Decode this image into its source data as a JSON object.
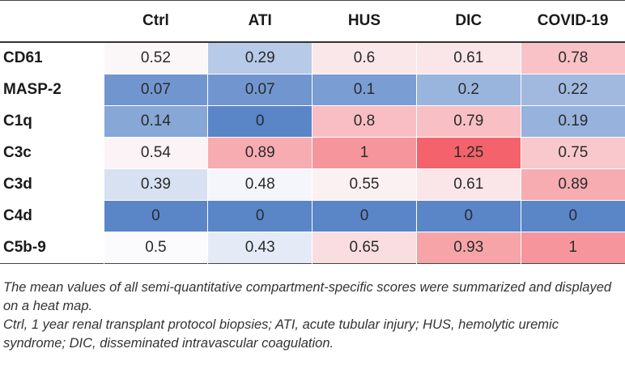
{
  "chart_data": {
    "type": "heatmap",
    "title": "",
    "columns": [
      "Ctrl",
      "ATI",
      "HUS",
      "DIC",
      "COVID-19"
    ],
    "rows": [
      "CD61",
      "MASP-2",
      "C1q",
      "C3c",
      "C3d",
      "C4d",
      "C5b-9"
    ],
    "values": [
      [
        0.52,
        0.29,
        0.6,
        0.61,
        0.78
      ],
      [
        0.07,
        0.07,
        0.1,
        0.2,
        0.22
      ],
      [
        0.14,
        0,
        0.8,
        0.79,
        0.19
      ],
      [
        0.54,
        0.89,
        1,
        1.25,
        0.75
      ],
      [
        0.39,
        0.48,
        0.55,
        0.61,
        0.89
      ],
      [
        0,
        0,
        0,
        0,
        0
      ],
      [
        0.5,
        0.43,
        0.65,
        0.93,
        1
      ]
    ],
    "color_scale": {
      "low_value": 0,
      "mid_value": 0.5,
      "high_value": 1.25,
      "low_color": "#5a86c8",
      "mid_color": "#fbfbfd",
      "high_color": "#f4636b"
    }
  },
  "footnotes": {
    "line1": "The mean values of all semi-quantitative compartment-specific scores were summarized and displayed on a heat map.",
    "line2": "Ctrl, 1 year renal transplant protocol biopsies; ATI, acute tubular injury; HUS, hemolytic uremic syndrome; DIC, disseminated intravascular coagulation."
  }
}
